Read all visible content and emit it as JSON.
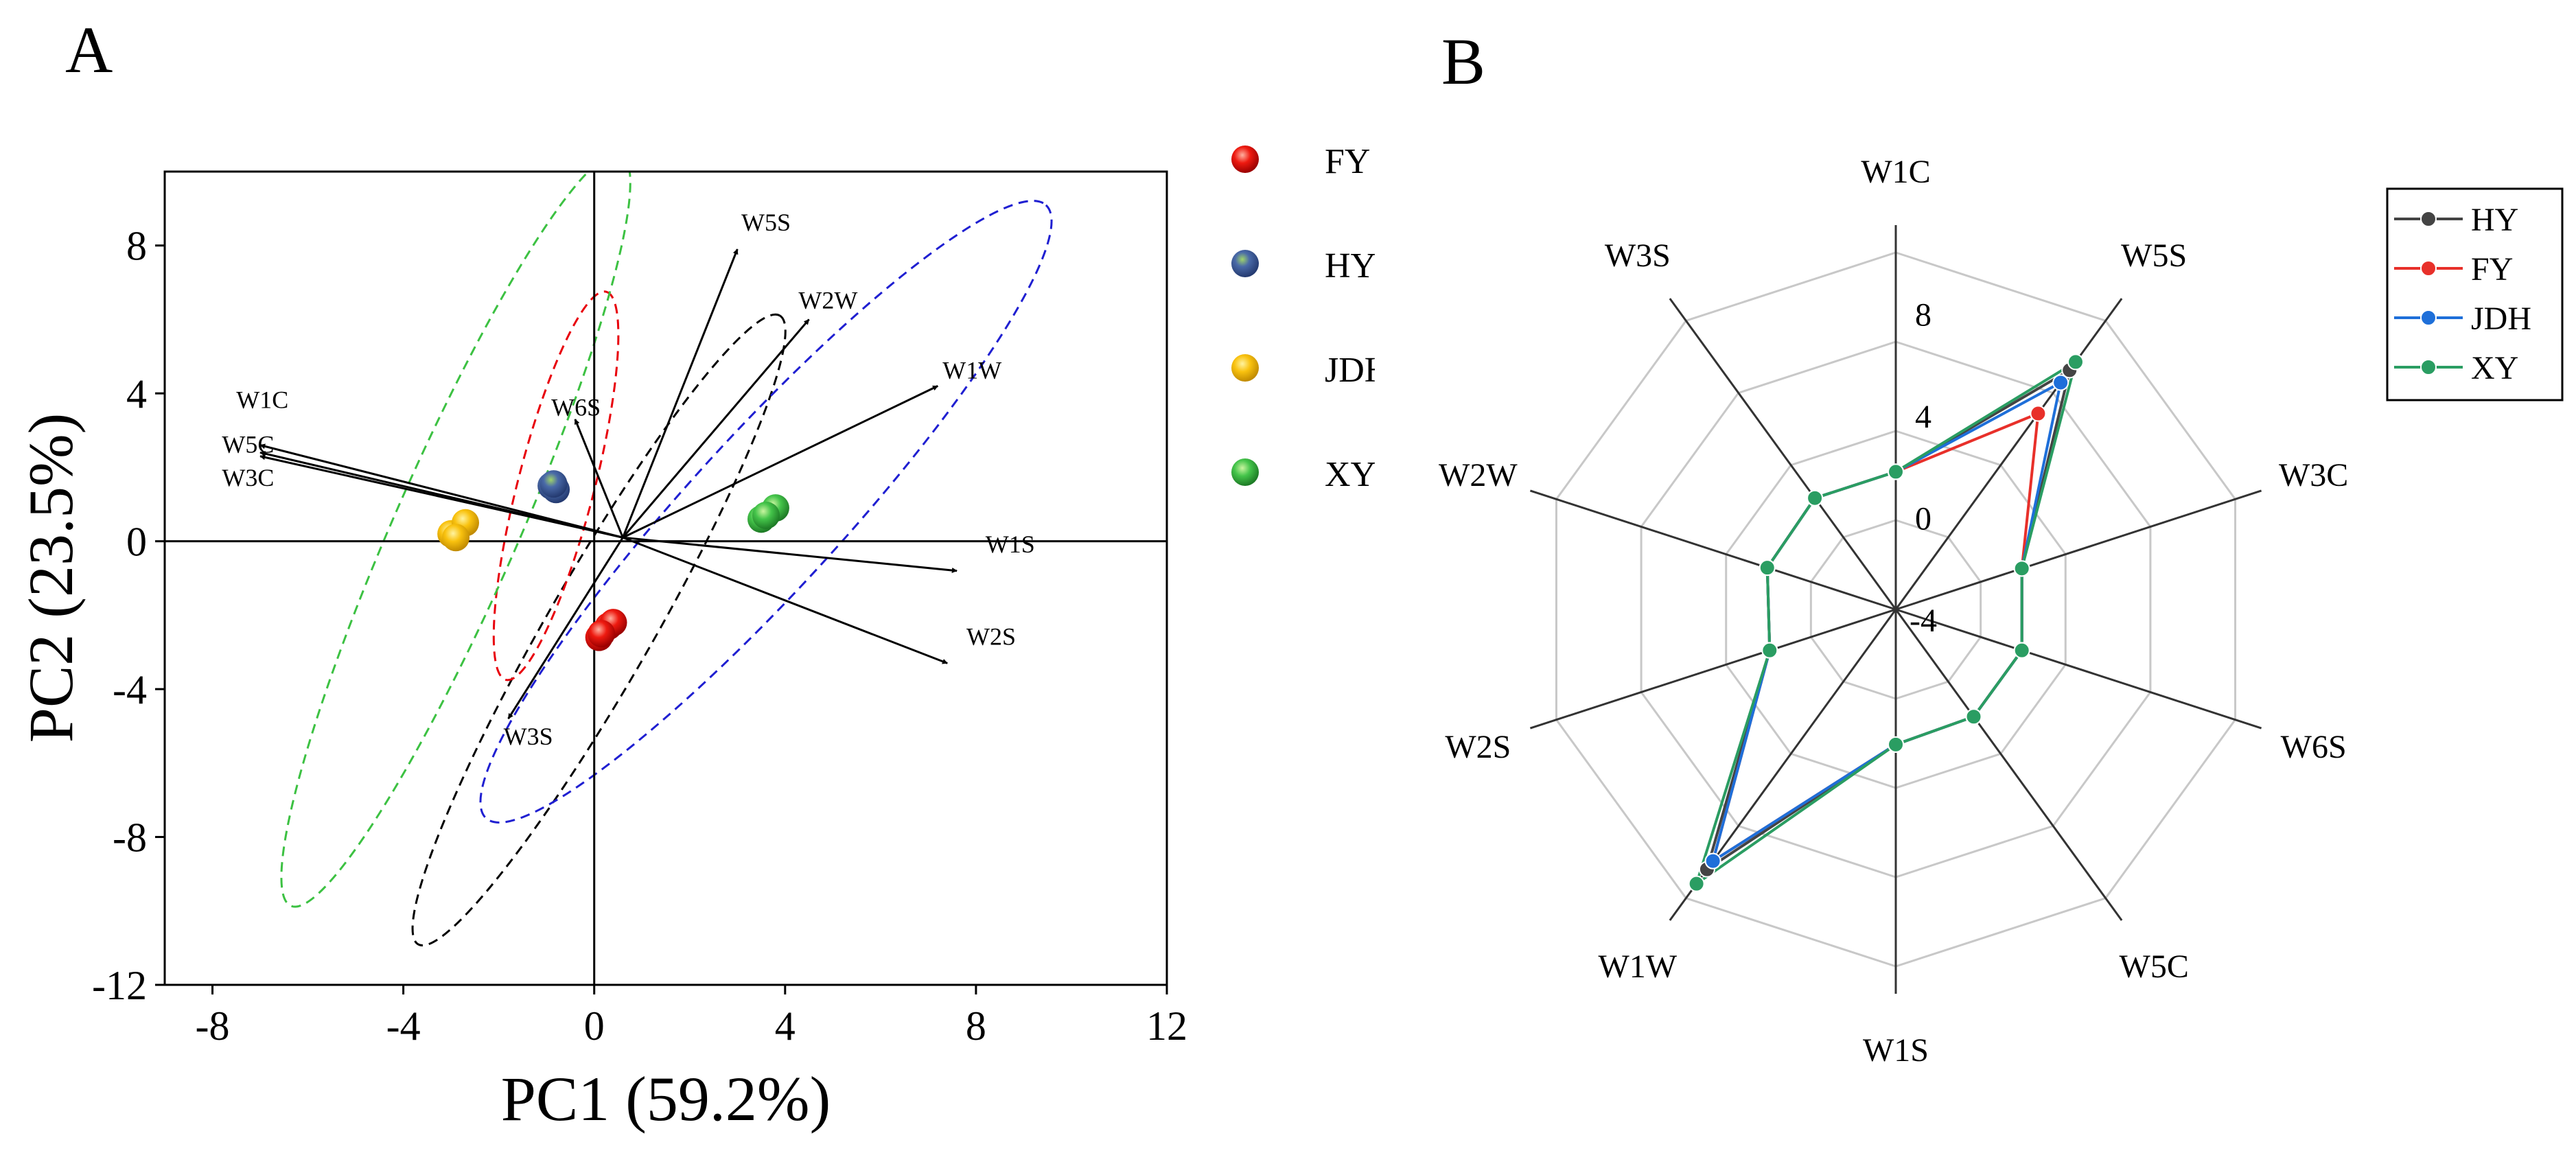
{
  "chart_data": [
    {
      "panel_label": "A",
      "type": "scatter",
      "xlabel": "PC1 (59.2%)",
      "ylabel": "PC2 (23.5%)",
      "xlim": [
        -9,
        12
      ],
      "ylim": [
        -12,
        10
      ],
      "x_ticks": [
        -8,
        -4,
        0,
        4,
        8,
        12
      ],
      "y_ticks": [
        -12,
        -8,
        -4,
        0,
        4,
        8
      ],
      "grid": false,
      "legend_position": "right",
      "series": [
        {
          "name": "FY",
          "color": "#e8000b",
          "points": [
            [
              0.1,
              -2.6
            ],
            [
              0.3,
              -2.3
            ],
            [
              0.4,
              -2.2
            ],
            [
              0.15,
              -2.5
            ]
          ]
        },
        {
          "name": "HY",
          "color": "#3b5b9a",
          "points": [
            [
              -0.9,
              1.5
            ],
            [
              -0.8,
              1.4
            ],
            [
              -0.85,
              1.55
            ]
          ]
        },
        {
          "name": "JDH",
          "color": "#f7c10b",
          "points": [
            [
              -3.0,
              0.2
            ],
            [
              -2.7,
              0.5
            ],
            [
              -2.9,
              0.1
            ]
          ]
        },
        {
          "name": "XY",
          "color": "#3cc142",
          "points": [
            [
              3.5,
              0.6
            ],
            [
              3.8,
              0.9
            ],
            [
              3.6,
              0.7
            ]
          ]
        }
      ],
      "loadings": [
        {
          "name": "W1C",
          "x": -7.0,
          "y": 2.6
        },
        {
          "name": "W5C",
          "x": -7.0,
          "y": 2.4
        },
        {
          "name": "W3C",
          "x": -7.0,
          "y": 2.3
        },
        {
          "name": "W6S",
          "x": -0.4,
          "y": 3.3
        },
        {
          "name": "W5S",
          "x": 3.0,
          "y": 7.9
        },
        {
          "name": "W2W",
          "x": 4.5,
          "y": 6.0
        },
        {
          "name": "W1W",
          "x": 7.2,
          "y": 4.2
        },
        {
          "name": "W1S",
          "x": 7.6,
          "y": -0.8
        },
        {
          "name": "W2S",
          "x": 7.4,
          "y": -3.3
        },
        {
          "name": "W3S",
          "x": -1.8,
          "y": -4.8
        }
      ],
      "ellipses": [
        {
          "group": "FY",
          "color": "#000000",
          "cx": 0.1,
          "cy": -2.4,
          "rx": 7.6,
          "ry": 1.1,
          "angle_deg": 60.1
        },
        {
          "group": "HY",
          "color": "#e8000b",
          "cx": -0.8,
          "cy": 1.5,
          "rx": 4.2,
          "ry": 0.8,
          "angle_deg": 75.5
        },
        {
          "group": "JDH",
          "color": "#3cc142",
          "cx": -2.9,
          "cy": 0.3,
          "rx": 8.6,
          "ry": 1.3,
          "angle_deg": 66.3
        },
        {
          "group": "XY",
          "color": "#1f1fd1",
          "cx": 3.6,
          "cy": 0.8,
          "rx": 8.7,
          "ry": 1.6,
          "angle_deg": 47.6
        }
      ]
    },
    {
      "panel_label": "B",
      "type": "radar",
      "axes": [
        "W1C",
        "W5S",
        "W3C",
        "W6S",
        "W5C",
        "W1S",
        "W1W",
        "W2S",
        "W2W",
        "W3S"
      ],
      "rlim": [
        -4,
        10
      ],
      "r_ticks": [
        -4,
        0,
        4,
        8
      ],
      "legend_position": "top-right",
      "series": [
        {
          "name": "HY",
          "color": "#444444",
          "values": [
            1.4,
            7.6,
            1.2,
            1.2,
            1.2,
            1.3,
            8.6,
            1.2,
            1.3,
            1.4
          ]
        },
        {
          "name": "FY",
          "color": "#e8302a",
          "values": [
            1.4,
            5.5,
            1.2,
            1.2,
            1.2,
            1.3,
            8.2,
            1.2,
            1.3,
            1.4
          ]
        },
        {
          "name": "JDH",
          "color": "#1e6fd9",
          "values": [
            1.4,
            7.0,
            1.2,
            1.2,
            1.2,
            1.3,
            8.2,
            1.2,
            1.3,
            1.4
          ]
        },
        {
          "name": "XY",
          "color": "#2a9d62",
          "values": [
            1.4,
            8.0,
            1.2,
            1.2,
            1.2,
            1.3,
            9.3,
            1.2,
            1.3,
            1.4
          ]
        }
      ]
    }
  ]
}
